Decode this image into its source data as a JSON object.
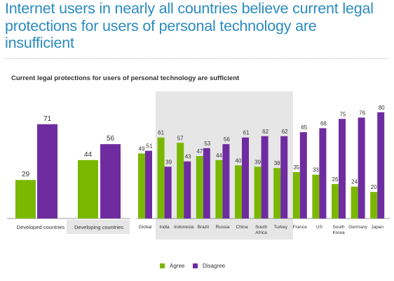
{
  "title": "Internet users in nearly all countries believe current legal protections for users of personal technology are insufficient",
  "colors": {
    "agree": "#7ab800",
    "disagree": "#6e2ca0",
    "highlight": "#e6e6e6",
    "title": "#2a8bc0"
  },
  "legend": {
    "agree": "Agree",
    "disagree": "Disagree"
  },
  "chart_data": {
    "type": "bar",
    "title": "Current legal protections for users of personal technology are sufficient",
    "xlabel": "",
    "ylabel": "",
    "ylim": [
      0,
      100
    ],
    "grid": false,
    "legend_position": "bottom-center",
    "groups": [
      {
        "categories": [
          "Developed countries",
          "Developing countries"
        ],
        "series": [
          {
            "name": "Agree",
            "values": [
              29,
              44
            ]
          },
          {
            "name": "Disagree",
            "values": [
              71,
              56
            ]
          }
        ]
      },
      {
        "categories": [
          "Global",
          "India",
          "Indonesia",
          "Brazil",
          "Russia",
          "China",
          "South Africa",
          "Turkey",
          "France",
          "US",
          "South Korea",
          "Germany",
          "Japan"
        ],
        "series": [
          {
            "name": "Agree",
            "values": [
              49,
              61,
              57,
              47,
              44,
              40,
              39,
              38,
              35,
              33,
              26,
              24,
              20
            ]
          },
          {
            "name": "Disagree",
            "values": [
              51,
              39,
              43,
              53,
              56,
              61,
              62,
              62,
              65,
              68,
              75,
              76,
              80
            ]
          }
        ]
      }
    ]
  }
}
